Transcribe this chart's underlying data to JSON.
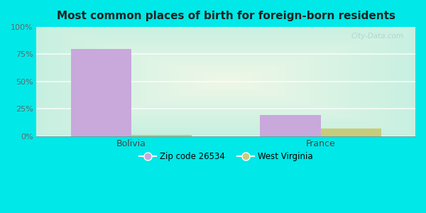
{
  "title": "Most common places of birth for foreign-born residents",
  "categories": [
    "Bolivia",
    "France"
  ],
  "series": [
    {
      "label": "Zip code 26534",
      "values": [
        80,
        19
      ],
      "color": "#c9a8dc"
    },
    {
      "label": "West Virginia",
      "values": [
        1.2,
        7
      ],
      "color": "#c8cc7a"
    }
  ],
  "ylim": [
    0,
    100
  ],
  "yticks": [
    0,
    25,
    50,
    75,
    100
  ],
  "ytick_labels": [
    "0%",
    "25%",
    "50%",
    "75%",
    "100%"
  ],
  "fig_bg": "#00e8e8",
  "plot_bg_center": "#f0f8e8",
  "plot_bg_edge": "#c8f0e0",
  "title_fontsize": 11,
  "bar_width": 0.32,
  "watermark": "City-Data.com"
}
